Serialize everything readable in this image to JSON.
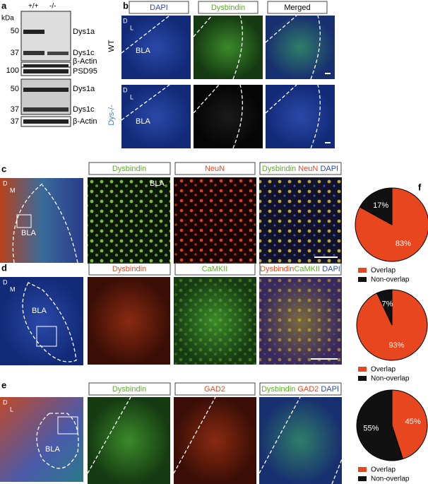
{
  "a": {
    "letter": "a",
    "unit": "kDa",
    "genotypes": [
      "+/+",
      "-/-"
    ],
    "markers": [
      50,
      37,
      100,
      50,
      37,
      37
    ],
    "bands": [
      "Dys1a",
      "Dys1c",
      "β-Actin",
      "PSD95",
      "Dys1a",
      "Dys1c",
      "β-Actin"
    ]
  },
  "b": {
    "letter": "b",
    "columns": [
      "DAPI",
      "Dysbindin",
      "Merged"
    ],
    "rows": [
      "WT",
      "Dys-/-"
    ],
    "regions": [
      "BLA",
      "BLA"
    ],
    "orientation": [
      "D",
      "L"
    ]
  },
  "c": {
    "letter": "c",
    "orientation": [
      "D",
      "M"
    ],
    "region": "BLA",
    "columns": [
      "Dysbindin",
      "NeuN"
    ],
    "merged": [
      "Dysbindin",
      "NeuN",
      "DAPI"
    ],
    "inset_region": "BLA"
  },
  "d": {
    "letter": "d",
    "orientation": [
      "D",
      "M"
    ],
    "region": "BLA",
    "columns": [
      "Dysbindin",
      "CaMKII"
    ],
    "merged": [
      "Dysbindin",
      "CaMKII",
      "DAPI"
    ]
  },
  "e": {
    "letter": "e",
    "orientation": [
      "D",
      "L"
    ],
    "region": "BLA",
    "columns": [
      "Dysbindin",
      "GAD2"
    ],
    "merged": [
      "Dysbindin",
      "GAD2",
      "DAPI"
    ]
  },
  "f": {
    "letter": "f"
  },
  "chart_data": [
    {
      "type": "pie",
      "categories": [
        "Overlap",
        "Non-overlap"
      ],
      "values": [
        83,
        17
      ],
      "value_labels": [
        "83%",
        "17%"
      ],
      "colors": [
        "#e8461e",
        "#111111"
      ]
    },
    {
      "type": "pie",
      "categories": [
        "Overlap",
        "Non-overlap"
      ],
      "values": [
        93,
        7
      ],
      "value_labels": [
        "93%",
        "7%"
      ],
      "colors": [
        "#e8461e",
        "#111111"
      ]
    },
    {
      "type": "pie",
      "categories": [
        "Overlap",
        "Non-overlap"
      ],
      "values": [
        45,
        55
      ],
      "value_labels": [
        "45%",
        "55%"
      ],
      "colors": [
        "#e8461e",
        "#111111"
      ]
    }
  ]
}
